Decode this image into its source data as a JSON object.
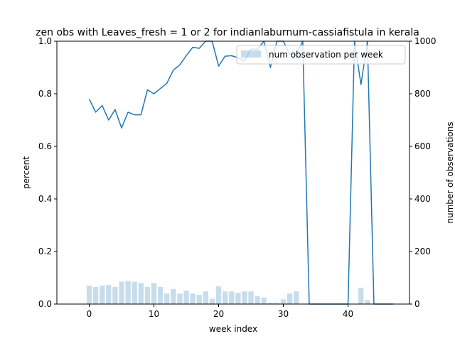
{
  "chart_data": {
    "type": "bar+line",
    "title": "zen obs with Leaves_fresh = 1 or 2 for indianlaburnum-cassiafistula in kerala",
    "xlabel": "week index",
    "ylabel_left": "percent",
    "ylabel_right": "number of observations",
    "xlim": [
      -5,
      49.5
    ],
    "ylim_left": [
      0,
      1.0
    ],
    "ylim_right": [
      0,
      1000
    ],
    "x_ticks": [
      0,
      10,
      20,
      30,
      40
    ],
    "y_left_ticks": [
      0.0,
      0.2,
      0.4,
      0.6,
      0.8,
      1.0
    ],
    "y_left_tick_labels": [
      "0.0",
      "0.2",
      "0.4",
      "0.6",
      "0.8",
      "1.0"
    ],
    "y_right_ticks": [
      0,
      200,
      400,
      600,
      800,
      1000
    ],
    "grid": false,
    "legend": {
      "position": "top-right",
      "entries": [
        "num observation per week"
      ]
    },
    "colors": {
      "line": "#1f77b4",
      "bars": "#1f77b4",
      "bar_alpha": 0.25
    },
    "line_series": {
      "x": [
        0,
        1,
        2,
        3,
        4,
        5,
        6,
        7,
        8,
        9,
        10,
        11,
        12,
        13,
        14,
        15,
        16,
        17,
        18,
        19,
        20,
        21,
        22,
        23,
        24,
        25,
        26,
        27,
        28,
        29,
        30,
        31,
        32,
        33,
        34,
        35,
        36,
        37,
        38,
        39,
        40,
        41,
        42,
        43,
        44,
        45,
        46,
        47
      ],
      "values": [
        0.78,
        0.73,
        0.755,
        0.7,
        0.74,
        0.67,
        0.73,
        0.72,
        0.72,
        0.815,
        0.8,
        0.82,
        0.84,
        0.89,
        0.91,
        0.945,
        0.977,
        0.973,
        1.0,
        1.0,
        0.905,
        0.943,
        0.945,
        0.937,
        0.925,
        0.97,
        0.97,
        1.0,
        0.9,
        1.0,
        1.0,
        0.95,
        0.95,
        1.0,
        0.0,
        0.0,
        0.0,
        0.0,
        0.0,
        0.0,
        0.0,
        1.0,
        0.835,
        1.0,
        0.0,
        0.0,
        0.0,
        0.0
      ]
    },
    "bar_series": {
      "name": "num observation per week",
      "x": [
        0,
        1,
        2,
        3,
        4,
        5,
        6,
        7,
        8,
        9,
        10,
        11,
        12,
        13,
        14,
        15,
        16,
        17,
        18,
        19,
        20,
        21,
        22,
        23,
        24,
        25,
        26,
        27,
        28,
        29,
        30,
        31,
        32,
        33,
        34,
        35,
        36,
        37,
        38,
        39,
        40,
        41,
        42,
        43,
        44,
        45,
        46,
        47
      ],
      "values": [
        70,
        65,
        70,
        73,
        65,
        85,
        88,
        85,
        80,
        65,
        80,
        65,
        40,
        57,
        40,
        50,
        40,
        35,
        48,
        20,
        68,
        48,
        48,
        43,
        48,
        48,
        30,
        25,
        5,
        5,
        18,
        40,
        48,
        0,
        0,
        0,
        0,
        0,
        0,
        0,
        0,
        0,
        62,
        15,
        0,
        0,
        0,
        0
      ]
    }
  }
}
